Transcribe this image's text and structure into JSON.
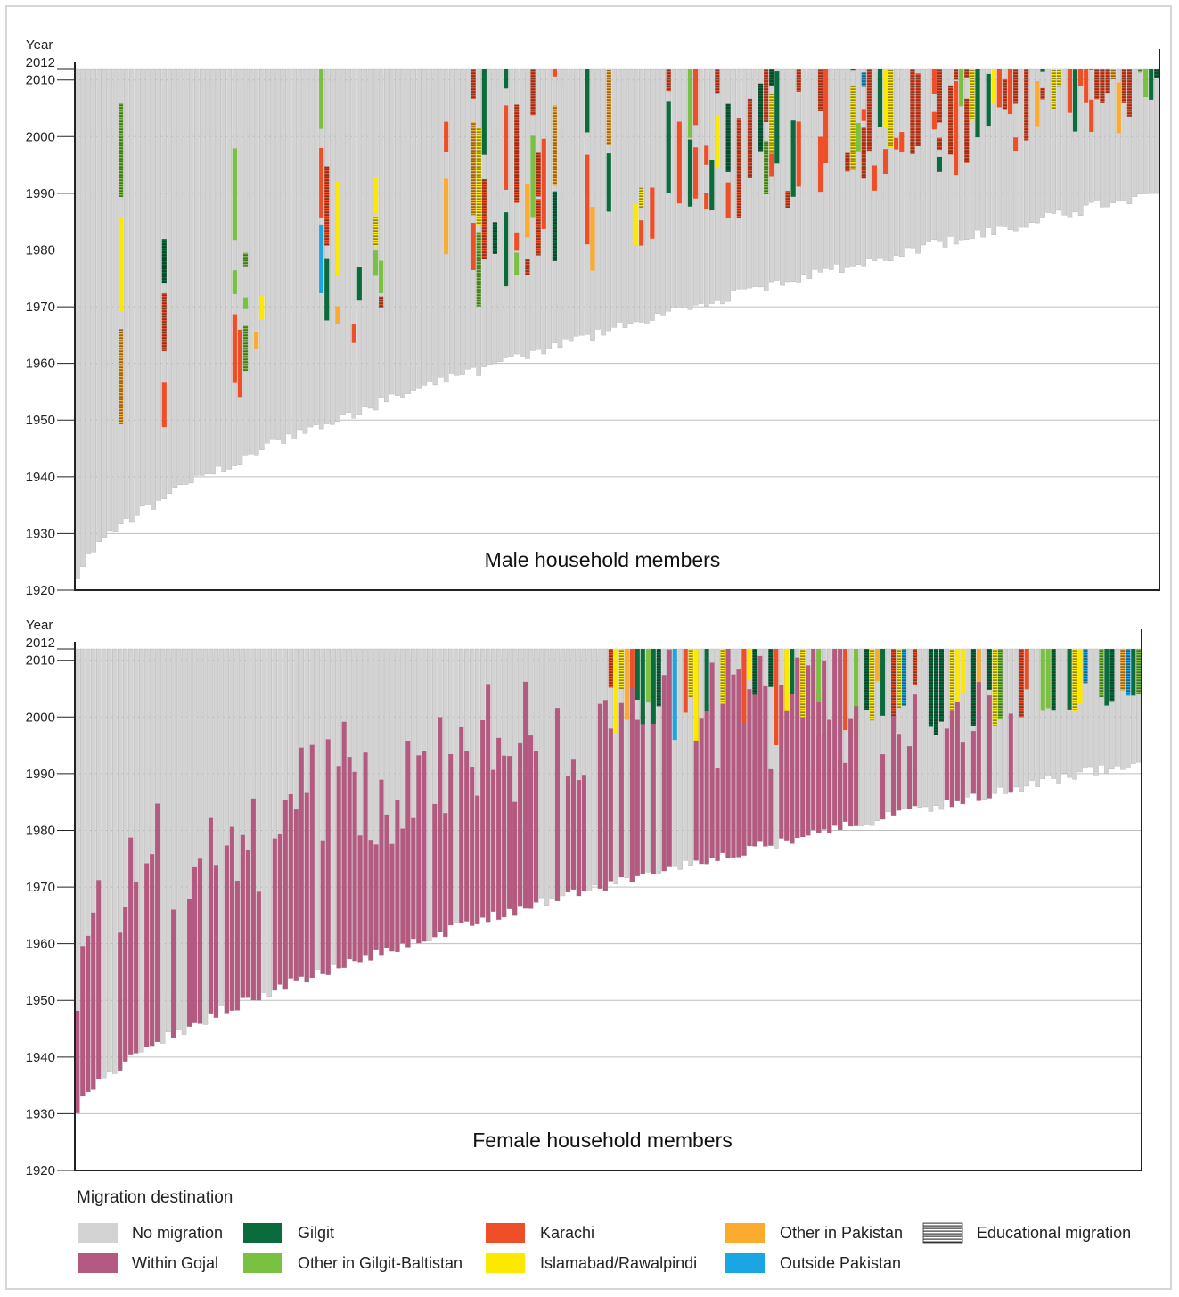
{
  "chart_data": [
    {
      "type": "bar",
      "title": "Male household members",
      "ylabel": "Year",
      "ylim": [
        1920,
        2012
      ],
      "yticks": [
        1920,
        1930,
        1940,
        1950,
        1960,
        1970,
        1980,
        1990,
        2000,
        2010,
        2012
      ],
      "grid": true,
      "n_members": 200,
      "birth_year_range": [
        1922,
        1990
      ],
      "description_series": "each column is one member from birth year to 2012; coloured segments show migration destination",
      "dominant_destinations": [
        "Karachi",
        "Gilgit",
        "Other in Gilgit-Baltistan",
        "Islamabad/Rawalpindi",
        "Other in Pakistan",
        "Outside Pakistan",
        "Educational migration"
      ]
    },
    {
      "type": "bar",
      "title": "Female household members",
      "ylabel": "Year",
      "ylim": [
        1920,
        2012
      ],
      "yticks": [
        1920,
        1930,
        1940,
        1950,
        1960,
        1970,
        1980,
        1990,
        2000,
        2010,
        2012
      ],
      "grid": true,
      "n_members": 200,
      "birth_year_range": [
        1930,
        1992
      ],
      "dominant_destinations": [
        "Within Gojal",
        "Gilgit",
        "Islamabad/Rawalpindi",
        "Karachi",
        "Educational migration"
      ]
    }
  ],
  "legend": {
    "title": "Migration destination",
    "items": [
      {
        "key": "none",
        "label": "No migration",
        "color": "#d3d3d3"
      },
      {
        "key": "gojal",
        "label": "Within Gojal",
        "color": "#b45a80"
      },
      {
        "key": "gilgit",
        "label": "Gilgit",
        "color": "#0a6b3c"
      },
      {
        "key": "ogb",
        "label": "Other in Gilgit-Baltistan",
        "color": "#7ac142"
      },
      {
        "key": "khi",
        "label": "Karachi",
        "color": "#ef4f28"
      },
      {
        "key": "isb",
        "label": "Islamabad/Rawalpindi",
        "color": "#fde800"
      },
      {
        "key": "opk",
        "label": "Other in Pakistan",
        "color": "#fbab2e"
      },
      {
        "key": "abroad",
        "label": "Outside Pakistan",
        "color": "#1aa6e2"
      },
      {
        "key": "edu",
        "label": "Educational migration",
        "color": "#000000"
      }
    ]
  }
}
